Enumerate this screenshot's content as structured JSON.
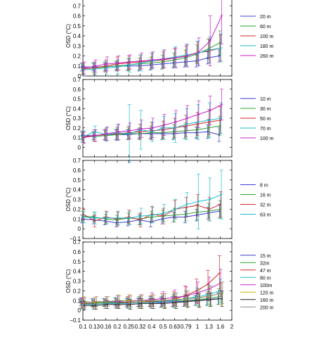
{
  "chart_data": [
    {
      "type": "line",
      "ylabel": "OSD (°C)",
      "ylim": [
        0,
        0.8
      ],
      "yticks": [
        "0",
        "0.1",
        "0.2",
        "0.3",
        "0.4",
        "0.5",
        "0.6",
        "0.7",
        "0.8"
      ],
      "series": [
        {
          "name": "20 m",
          "color": "#3b3bd4",
          "values": [
            0.09,
            0.09,
            0.09,
            0.1,
            0.1,
            0.1,
            0.11,
            0.12,
            0.13,
            0.14,
            0.15,
            0.18,
            0.2
          ],
          "err": [
            0.04,
            0.04,
            0.04,
            0.04,
            0.04,
            0.05,
            0.05,
            0.05,
            0.05,
            0.05,
            0.06,
            0.06,
            0.06
          ]
        },
        {
          "name": "60 m",
          "color": "#2ca02c",
          "values": [
            0.07,
            0.08,
            0.09,
            0.1,
            0.11,
            0.12,
            0.13,
            0.14,
            0.16,
            0.18,
            0.22,
            0.27,
            0.33
          ],
          "err": [
            0.05,
            0.05,
            0.05,
            0.05,
            0.06,
            0.06,
            0.06,
            0.07,
            0.07,
            0.08,
            0.09,
            0.1,
            0.12
          ]
        },
        {
          "name": "100 m",
          "color": "#d62728",
          "values": [
            0.07,
            0.08,
            0.1,
            0.12,
            0.13,
            0.14,
            0.15,
            0.16,
            0.18,
            0.2,
            0.23,
            0.25,
            0.28
          ],
          "err": [
            0.06,
            0.06,
            0.06,
            0.07,
            0.07,
            0.07,
            0.08,
            0.08,
            0.09,
            0.1,
            0.11,
            0.12,
            0.13
          ]
        },
        {
          "name": "180 m",
          "color": "#17becf",
          "values": [
            0.06,
            0.07,
            0.08,
            0.09,
            0.11,
            0.13,
            0.15,
            0.17,
            0.19,
            0.21,
            0.23,
            0.26,
            0.28
          ],
          "err": [
            0.06,
            0.06,
            0.06,
            0.07,
            0.07,
            0.08,
            0.08,
            0.09,
            0.1,
            0.11,
            0.12,
            0.13,
            0.14
          ]
        },
        {
          "name": "260 m",
          "color": "#c71ec7",
          "values": [
            0.08,
            0.1,
            0.12,
            0.13,
            0.14,
            0.15,
            0.16,
            0.17,
            0.18,
            0.2,
            0.24,
            0.35,
            0.6
          ],
          "err": [
            0.06,
            0.06,
            0.07,
            0.07,
            0.07,
            0.08,
            0.08,
            0.09,
            0.1,
            0.11,
            0.14,
            0.25,
            0.28
          ]
        }
      ]
    },
    {
      "type": "line",
      "ylabel": "OSD (°C)",
      "ylim": [
        -0.1,
        0.7
      ],
      "yticks": [
        "0",
        "0.1",
        "0.2",
        "0.3",
        "0.4",
        "0.5",
        "0.6",
        "0.7"
      ],
      "series": [
        {
          "name": "10 m",
          "color": "#3b3bd4",
          "values": [
            0.12,
            0.12,
            0.13,
            0.13,
            0.13,
            0.14,
            0.14,
            0.14,
            0.14,
            0.15,
            0.15,
            0.16,
            0.13
          ],
          "err": [
            0.04,
            0.04,
            0.05,
            0.05,
            0.05,
            0.05,
            0.05,
            0.06,
            0.06,
            0.06,
            0.06,
            0.07,
            0.07
          ]
        },
        {
          "name": "30 m",
          "color": "#2ca02c",
          "values": [
            0.11,
            0.11,
            0.12,
            0.13,
            0.14,
            0.14,
            0.15,
            0.15,
            0.16,
            0.17,
            0.18,
            0.2,
            0.22
          ],
          "err": [
            0.05,
            0.05,
            0.05,
            0.06,
            0.06,
            0.06,
            0.07,
            0.07,
            0.07,
            0.08,
            0.08,
            0.09,
            0.1
          ]
        },
        {
          "name": "50 m",
          "color": "#d62728",
          "values": [
            0.11,
            0.12,
            0.13,
            0.14,
            0.15,
            0.16,
            0.17,
            0.18,
            0.2,
            0.22,
            0.24,
            0.26,
            0.28
          ],
          "err": [
            0.06,
            0.06,
            0.06,
            0.07,
            0.07,
            0.08,
            0.09,
            0.09,
            0.1,
            0.11,
            0.12,
            0.13,
            0.14
          ]
        },
        {
          "name": "70 m",
          "color": "#17becf",
          "values": [
            0.11,
            0.16,
            0.13,
            0.15,
            0.14,
            0.18,
            0.16,
            0.2,
            0.2,
            0.24,
            0.26,
            0.28,
            0.3
          ],
          "err": [
            0.06,
            0.06,
            0.07,
            0.08,
            0.3,
            0.2,
            0.1,
            0.12,
            0.15,
            0.16,
            0.18,
            0.18,
            0.16
          ]
        },
        {
          "name": "100 m",
          "color": "#c71ec7",
          "values": [
            0.1,
            0.12,
            0.14,
            0.16,
            0.17,
            0.19,
            0.2,
            0.23,
            0.26,
            0.3,
            0.34,
            0.38,
            0.44
          ],
          "err": [
            0.06,
            0.06,
            0.07,
            0.08,
            0.08,
            0.09,
            0.1,
            0.11,
            0.12,
            0.13,
            0.14,
            0.15,
            0.16
          ]
        }
      ]
    },
    {
      "type": "line",
      "ylabel": "OSD (°C)",
      "ylim": [
        -0.1,
        0.7
      ],
      "yticks": [
        "−0.1",
        "0",
        "0.1",
        "0.2",
        "0.3",
        "0.4",
        "0.5",
        "0.6",
        "0.7"
      ],
      "series": [
        {
          "name": "8 m",
          "color": "#3b3bd4",
          "values": [
            0.1,
            0.09,
            0.08,
            0.06,
            0.07,
            0.09,
            0.07,
            0.1,
            0.12,
            0.12,
            0.14,
            0.16,
            0.18
          ],
          "err": [
            0.04,
            0.04,
            0.04,
            0.04,
            0.04,
            0.05,
            0.05,
            0.05,
            0.05,
            0.06,
            0.06,
            0.06,
            0.07
          ]
        },
        {
          "name": "16 m",
          "color": "#2ca02c",
          "values": [
            0.13,
            0.12,
            0.1,
            0.09,
            0.11,
            0.1,
            0.12,
            0.13,
            0.14,
            0.15,
            0.17,
            0.18,
            0.2
          ],
          "err": [
            0.05,
            0.05,
            0.05,
            0.05,
            0.05,
            0.06,
            0.06,
            0.06,
            0.07,
            0.07,
            0.08,
            0.08,
            0.09
          ]
        },
        {
          "name": "32 m",
          "color": "#d62728",
          "values": [
            0.15,
            0.08,
            0.12,
            0.1,
            0.12,
            0.09,
            0.15,
            0.13,
            0.2,
            0.22,
            0.24,
            0.2,
            0.25
          ],
          "err": [
            0.06,
            0.06,
            0.06,
            0.07,
            0.07,
            0.07,
            0.08,
            0.08,
            0.09,
            0.1,
            0.11,
            0.12,
            0.13
          ]
        },
        {
          "name": "63 m",
          "color": "#17becf",
          "values": [
            0.12,
            0.11,
            0.11,
            0.11,
            0.11,
            0.13,
            0.14,
            0.16,
            0.2,
            0.25,
            0.28,
            0.3,
            0.35
          ],
          "err": [
            0.06,
            0.06,
            0.06,
            0.07,
            0.07,
            0.08,
            0.08,
            0.09,
            0.1,
            0.12,
            0.28,
            0.22,
            0.25
          ]
        }
      ]
    },
    {
      "type": "line",
      "ylabel": "OSD (°C)",
      "ylim": [
        -0.1,
        0.7
      ],
      "yticks": [
        "−0.1",
        "0",
        "0.1",
        "0.2",
        "0.3",
        "0.4",
        "0.5",
        "0.6",
        "0.7"
      ],
      "xticks": [
        "0.1",
        "0.13",
        "0.16",
        "0.2",
        "0.25",
        "0.32",
        "0.4",
        "0.5",
        "0.63",
        "0.79",
        "1",
        "1.3",
        "1.6",
        "2"
      ],
      "series": [
        {
          "name": "15 m",
          "color": "#3b3bd4",
          "values": [
            0.09,
            0.08,
            0.08,
            0.09,
            0.08,
            0.08,
            0.08,
            0.08,
            0.09,
            0.09,
            0.1,
            0.11,
            0.12
          ],
          "err": [
            0.04,
            0.04,
            0.04,
            0.04,
            0.04,
            0.04,
            0.04,
            0.05,
            0.05,
            0.05,
            0.05,
            0.06,
            0.06
          ]
        },
        {
          "name": "32m",
          "color": "#2ca02c",
          "values": [
            0.07,
            0.07,
            0.08,
            0.08,
            0.08,
            0.08,
            0.09,
            0.09,
            0.1,
            0.1,
            0.11,
            0.12,
            0.14
          ],
          "err": [
            0.04,
            0.04,
            0.04,
            0.05,
            0.05,
            0.05,
            0.05,
            0.05,
            0.06,
            0.06,
            0.06,
            0.07,
            0.08
          ]
        },
        {
          "name": "47 m",
          "color": "#d62728",
          "values": [
            0.07,
            0.06,
            0.07,
            0.07,
            0.08,
            0.08,
            0.09,
            0.1,
            0.11,
            0.15,
            0.2,
            0.27,
            0.38
          ],
          "err": [
            0.05,
            0.05,
            0.05,
            0.05,
            0.06,
            0.06,
            0.06,
            0.07,
            0.08,
            0.1,
            0.12,
            0.14,
            0.18
          ]
        },
        {
          "name": "80 m",
          "color": "#17becf",
          "values": [
            0.06,
            0.06,
            0.07,
            0.07,
            0.07,
            0.08,
            0.08,
            0.09,
            0.1,
            0.12,
            0.14,
            0.16,
            0.2
          ],
          "err": [
            0.05,
            0.05,
            0.05,
            0.05,
            0.05,
            0.06,
            0.06,
            0.06,
            0.07,
            0.08,
            0.09,
            0.1,
            0.12
          ]
        },
        {
          "name": "100m",
          "color": "#c71ec7",
          "values": [
            0.08,
            0.08,
            0.09,
            0.09,
            0.1,
            0.1,
            0.11,
            0.12,
            0.13,
            0.15,
            0.18,
            0.22,
            0.28
          ],
          "err": [
            0.05,
            0.05,
            0.05,
            0.06,
            0.06,
            0.06,
            0.07,
            0.07,
            0.08,
            0.09,
            0.11,
            0.12,
            0.14
          ]
        },
        {
          "name": "120 m",
          "color": "#c8b400",
          "values": [
            0.09,
            0.08,
            0.09,
            0.1,
            0.1,
            0.09,
            0.1,
            0.1,
            0.11,
            0.12,
            0.13,
            0.15,
            0.17
          ],
          "err": [
            0.05,
            0.05,
            0.05,
            0.06,
            0.06,
            0.06,
            0.06,
            0.07,
            0.07,
            0.08,
            0.09,
            0.1,
            0.11
          ]
        },
        {
          "name": "160 m",
          "color": "#222222",
          "values": [
            0.05,
            0.05,
            0.06,
            0.06,
            0.06,
            0.07,
            0.07,
            0.07,
            0.08,
            0.09,
            0.1,
            0.11,
            0.12
          ],
          "err": [
            0.04,
            0.04,
            0.04,
            0.04,
            0.05,
            0.05,
            0.05,
            0.05,
            0.06,
            0.06,
            0.07,
            0.07,
            0.08
          ]
        },
        {
          "name": "200 m",
          "color": "#888888",
          "values": [
            0.08,
            0.09,
            0.09,
            0.1,
            0.09,
            0.1,
            0.1,
            0.1,
            0.11,
            0.12,
            0.13,
            0.15,
            0.18
          ],
          "err": [
            0.05,
            0.05,
            0.05,
            0.05,
            0.06,
            0.06,
            0.06,
            0.07,
            0.07,
            0.08,
            0.09,
            0.1,
            0.11
          ]
        }
      ]
    }
  ]
}
